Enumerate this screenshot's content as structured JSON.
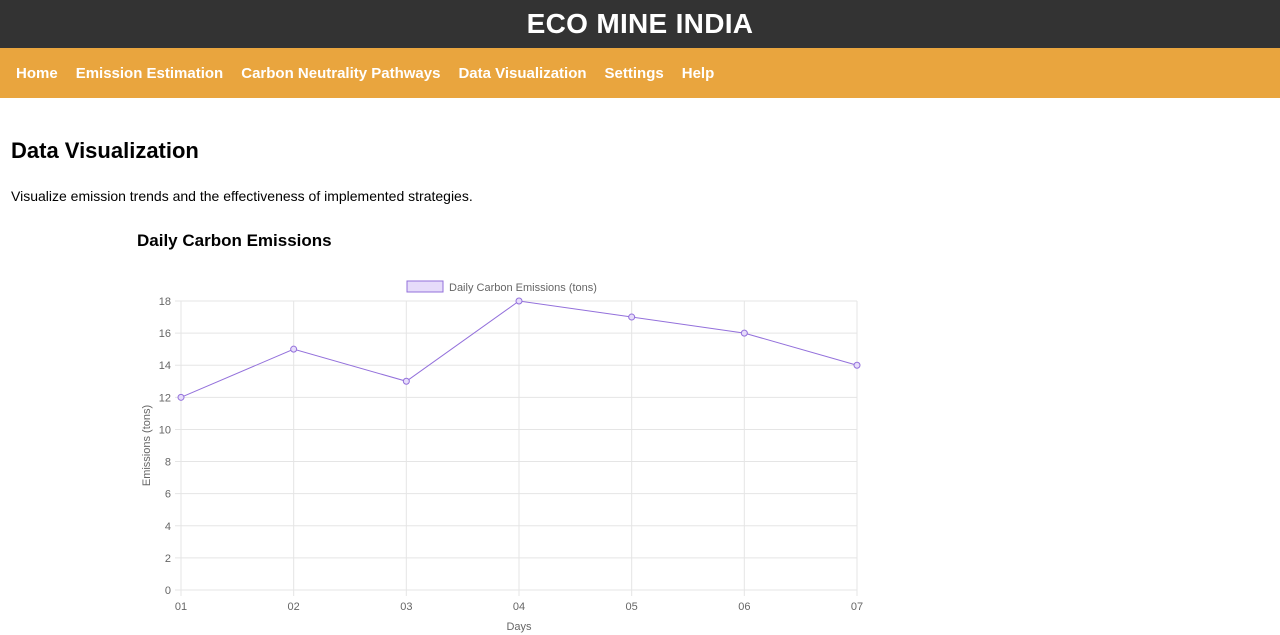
{
  "header": {
    "title": "ECO MINE INDIA"
  },
  "nav": {
    "items": [
      {
        "label": "Home"
      },
      {
        "label": "Emission Estimation"
      },
      {
        "label": "Carbon Neutrality Pathways"
      },
      {
        "label": "Data Visualization"
      },
      {
        "label": "Settings"
      },
      {
        "label": "Help"
      }
    ]
  },
  "main": {
    "title": "Data Visualization",
    "description": "Visualize emission trends and the effectiveness of implemented strategies.",
    "chart_heading": "Daily Carbon Emissions"
  },
  "colors": {
    "header_bg": "#333333",
    "nav_bg": "#e9a53e",
    "series_line": "#9370db",
    "series_fill": "#e6dcfa"
  },
  "chart_data": {
    "type": "line",
    "title": "Daily Carbon Emissions",
    "xlabel": "Days",
    "ylabel": "Emissions (tons)",
    "categories": [
      "01",
      "02",
      "03",
      "04",
      "05",
      "06",
      "07"
    ],
    "series": [
      {
        "name": "Daily Carbon Emissions (tons)",
        "values": [
          12,
          15,
          13,
          18,
          17,
          16,
          14
        ]
      }
    ],
    "ylim": [
      0,
      18
    ],
    "yticks": [
      0,
      2,
      4,
      6,
      8,
      10,
      12,
      14,
      16,
      18
    ],
    "grid": true,
    "legend": "top-center"
  }
}
